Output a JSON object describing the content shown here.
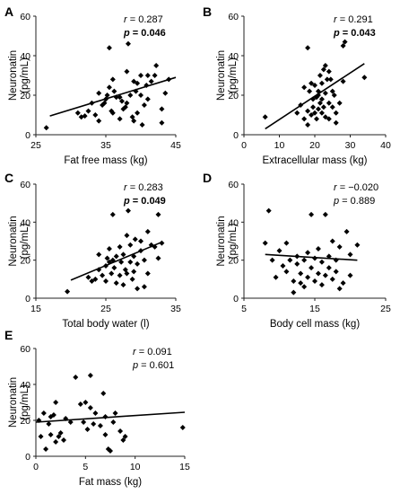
{
  "chart_data": [
    {
      "type": "scatter",
      "panel": "A",
      "xlabel": "Fat free mass (kg)",
      "ylabel": [
        "Neuronatin",
        "(pg/mL)"
      ],
      "xlim": [
        25,
        45
      ],
      "ylim": [
        0,
        60
      ],
      "xticks": [
        "25",
        "35",
        "45"
      ],
      "yticks": [
        "0",
        "20",
        "40",
        "60"
      ],
      "r_text": " = 0.287",
      "p_text": " = 0.046",
      "p_bold": true,
      "trend": [
        [
          27,
          9.5
        ],
        [
          45,
          29
        ]
      ],
      "points": [
        [
          26.5,
          3.5
        ],
        [
          31,
          11
        ],
        [
          31.5,
          9
        ],
        [
          32,
          9.5
        ],
        [
          32.5,
          12
        ],
        [
          33,
          16
        ],
        [
          33.5,
          10
        ],
        [
          34,
          21
        ],
        [
          34,
          7
        ],
        [
          34.5,
          15
        ],
        [
          34.8,
          16
        ],
        [
          35,
          18
        ],
        [
          35.2,
          20
        ],
        [
          35.5,
          24
        ],
        [
          35.5,
          44
        ],
        [
          35.8,
          12
        ],
        [
          36,
          28
        ],
        [
          36,
          11
        ],
        [
          36.2,
          22
        ],
        [
          36.5,
          19
        ],
        [
          37,
          8
        ],
        [
          37,
          19
        ],
        [
          37.3,
          17
        ],
        [
          37.5,
          13
        ],
        [
          37.8,
          14
        ],
        [
          38,
          16
        ],
        [
          38,
          32
        ],
        [
          38.2,
          46
        ],
        [
          38.5,
          20
        ],
        [
          38.8,
          9
        ],
        [
          39,
          7
        ],
        [
          39,
          27
        ],
        [
          39.3,
          22
        ],
        [
          39.5,
          11
        ],
        [
          39.5,
          26
        ],
        [
          40,
          20
        ],
        [
          40,
          30
        ],
        [
          40.2,
          5
        ],
        [
          40.5,
          15
        ],
        [
          40.8,
          25
        ],
        [
          41,
          18
        ],
        [
          41,
          30
        ],
        [
          41.5,
          27
        ],
        [
          42,
          30
        ],
        [
          42.2,
          35
        ],
        [
          43,
          6
        ],
        [
          43,
          13
        ],
        [
          43.5,
          21
        ],
        [
          44,
          28
        ]
      ]
    },
    {
      "type": "scatter",
      "panel": "B",
      "xlabel": "Extracellular mass (kg)",
      "ylabel": [
        "Neuronatin",
        "(pg/mL)"
      ],
      "xlim": [
        0,
        40
      ],
      "ylim": [
        0,
        60
      ],
      "xticks": [
        "0",
        "10",
        "20",
        "30",
        "40"
      ],
      "yticks": [
        "0",
        "20",
        "40",
        "60"
      ],
      "r_text": " = 0.291",
      "p_text": " = 0.043",
      "p_bold": true,
      "trend": [
        [
          6,
          3
        ],
        [
          34,
          36
        ]
      ],
      "points": [
        [
          6,
          9
        ],
        [
          15,
          11
        ],
        [
          16,
          15
        ],
        [
          17,
          8
        ],
        [
          17,
          24
        ],
        [
          18,
          12
        ],
        [
          18,
          5
        ],
        [
          18,
          44
        ],
        [
          18.5,
          22
        ],
        [
          19,
          10
        ],
        [
          19,
          26
        ],
        [
          19.5,
          18
        ],
        [
          19.5,
          14
        ],
        [
          20,
          25
        ],
        [
          20,
          11
        ],
        [
          20.5,
          19
        ],
        [
          20.5,
          8
        ],
        [
          21,
          20
        ],
        [
          21,
          22
        ],
        [
          21,
          13
        ],
        [
          21.5,
          30
        ],
        [
          21.5,
          16
        ],
        [
          22,
          11
        ],
        [
          22,
          18
        ],
        [
          22,
          26
        ],
        [
          22.5,
          33
        ],
        [
          22.5,
          14
        ],
        [
          23,
          21
        ],
        [
          23,
          35
        ],
        [
          23,
          9
        ],
        [
          23.5,
          28
        ],
        [
          24,
          32
        ],
        [
          24,
          16
        ],
        [
          24,
          8
        ],
        [
          24.5,
          28
        ],
        [
          25,
          14
        ],
        [
          25,
          22
        ],
        [
          25.5,
          20
        ],
        [
          26,
          6
        ],
        [
          26,
          11
        ],
        [
          27,
          16
        ],
        [
          28,
          27
        ],
        [
          28,
          45
        ],
        [
          28.5,
          47
        ],
        [
          34,
          29
        ]
      ]
    },
    {
      "type": "scatter",
      "panel": "C",
      "xlabel": "Total body water (l)",
      "ylabel": [
        "Neuronatin",
        "(pg/mL)"
      ],
      "xlim": [
        15,
        35
      ],
      "ylim": [
        0,
        60
      ],
      "xticks": [
        "15",
        "25",
        "35"
      ],
      "yticks": [
        "0",
        "20",
        "40",
        "60"
      ],
      "r_text": " = 0.283",
      "p_text": " = 0.049",
      "p_bold": true,
      "trend": [
        [
          20,
          9.5
        ],
        [
          33,
          29.5
        ]
      ],
      "points": [
        [
          19.5,
          3.5
        ],
        [
          22.5,
          11
        ],
        [
          23,
          9
        ],
        [
          23.5,
          10
        ],
        [
          24,
          15
        ],
        [
          24,
          23
        ],
        [
          24.5,
          12
        ],
        [
          25,
          17
        ],
        [
          25,
          9
        ],
        [
          25.2,
          21
        ],
        [
          25.5,
          19
        ],
        [
          25.5,
          26
        ],
        [
          25.8,
          13
        ],
        [
          26,
          20
        ],
        [
          26,
          44
        ],
        [
          26.2,
          16
        ],
        [
          26.5,
          22
        ],
        [
          26.5,
          8
        ],
        [
          27,
          12
        ],
        [
          27,
          27
        ],
        [
          27.2,
          19
        ],
        [
          27.5,
          7
        ],
        [
          27.5,
          23
        ],
        [
          27.8,
          15
        ],
        [
          28,
          33
        ],
        [
          28,
          13
        ],
        [
          28.2,
          46
        ],
        [
          28.5,
          19
        ],
        [
          28.5,
          28
        ],
        [
          28.8,
          10
        ],
        [
          29,
          22
        ],
        [
          29,
          14
        ],
        [
          29.2,
          31
        ],
        [
          29.5,
          18
        ],
        [
          29.5,
          5
        ],
        [
          30,
          30
        ],
        [
          30,
          25
        ],
        [
          30.5,
          6
        ],
        [
          30.5,
          20
        ],
        [
          31,
          13
        ],
        [
          31,
          35
        ],
        [
          31.5,
          28
        ],
        [
          32,
          27
        ],
        [
          32.5,
          21
        ],
        [
          32.5,
          44
        ],
        [
          33,
          29
        ]
      ]
    },
    {
      "type": "scatter",
      "panel": "D",
      "xlabel": "Body cell mass (kg)",
      "ylabel": [
        "Neuronatin",
        "(pg/mL)"
      ],
      "xlim": [
        5,
        25
      ],
      "ylim": [
        0,
        60
      ],
      "xticks": [
        "5",
        "15",
        "25"
      ],
      "yticks": [
        "0",
        "20",
        "40",
        "60"
      ],
      "r_text": " = −0.020",
      "p_text": " = 0.889",
      "p_bold": false,
      "trend": [
        [
          8,
          23
        ],
        [
          21,
          20
        ]
      ],
      "points": [
        [
          8,
          29
        ],
        [
          8.5,
          46
        ],
        [
          9,
          20
        ],
        [
          9.5,
          11
        ],
        [
          10,
          25
        ],
        [
          10.5,
          17
        ],
        [
          11,
          14
        ],
        [
          11,
          29
        ],
        [
          11.5,
          20
        ],
        [
          12,
          9
        ],
        [
          12,
          3
        ],
        [
          12.5,
          18
        ],
        [
          12.5,
          22
        ],
        [
          13,
          8
        ],
        [
          13,
          13
        ],
        [
          13.5,
          20
        ],
        [
          13.5,
          6
        ],
        [
          14,
          24
        ],
        [
          14,
          11
        ],
        [
          14.5,
          16
        ],
        [
          14.5,
          44
        ],
        [
          15,
          21
        ],
        [
          15,
          9
        ],
        [
          15.5,
          13
        ],
        [
          15.5,
          26
        ],
        [
          16,
          19
        ],
        [
          16,
          7
        ],
        [
          16.5,
          44
        ],
        [
          16.5,
          12
        ],
        [
          17,
          16
        ],
        [
          17,
          22
        ],
        [
          17.5,
          30
        ],
        [
          17.5,
          10
        ],
        [
          18,
          14
        ],
        [
          18,
          20
        ],
        [
          18.5,
          27
        ],
        [
          18.5,
          5
        ],
        [
          19,
          8
        ],
        [
          19.5,
          35
        ],
        [
          20,
          23
        ],
        [
          20,
          12
        ],
        [
          21,
          28
        ]
      ]
    },
    {
      "type": "scatter",
      "panel": "E",
      "xlabel": "Fat mass (kg)",
      "ylabel": [
        "Neuronatin",
        "(pg/mL)"
      ],
      "xlim": [
        0,
        15
      ],
      "ylim": [
        0,
        60
      ],
      "xticks": [
        "0",
        "5",
        "10",
        "15"
      ],
      "yticks": [
        "0",
        "20",
        "40",
        "60"
      ],
      "r_text": " = 0.091",
      "p_text": " = 0.601",
      "p_bold": false,
      "trend": [
        [
          0,
          19
        ],
        [
          15,
          24.5
        ]
      ],
      "points": [
        [
          0.3,
          20
        ],
        [
          0.5,
          11
        ],
        [
          0.8,
          24
        ],
        [
          1,
          4
        ],
        [
          1.3,
          18
        ],
        [
          1.5,
          22
        ],
        [
          1.5,
          12
        ],
        [
          1.8,
          23
        ],
        [
          2,
          8
        ],
        [
          2,
          30
        ],
        [
          2.3,
          11
        ],
        [
          2.5,
          13
        ],
        [
          2.8,
          9
        ],
        [
          3,
          21
        ],
        [
          3.5,
          19
        ],
        [
          4,
          44
        ],
        [
          4.5,
          29
        ],
        [
          4.8,
          19
        ],
        [
          5,
          30
        ],
        [
          5.2,
          15
        ],
        [
          5.5,
          45
        ],
        [
          5.5,
          27
        ],
        [
          5.8,
          18
        ],
        [
          6,
          24
        ],
        [
          6.5,
          17
        ],
        [
          6.8,
          35
        ],
        [
          7,
          22
        ],
        [
          7,
          12
        ],
        [
          7.3,
          4
        ],
        [
          7.5,
          3
        ],
        [
          7.8,
          19
        ],
        [
          8,
          24
        ],
        [
          8.5,
          14
        ],
        [
          8.8,
          9
        ],
        [
          9,
          11
        ],
        [
          14.8,
          16
        ]
      ]
    }
  ]
}
